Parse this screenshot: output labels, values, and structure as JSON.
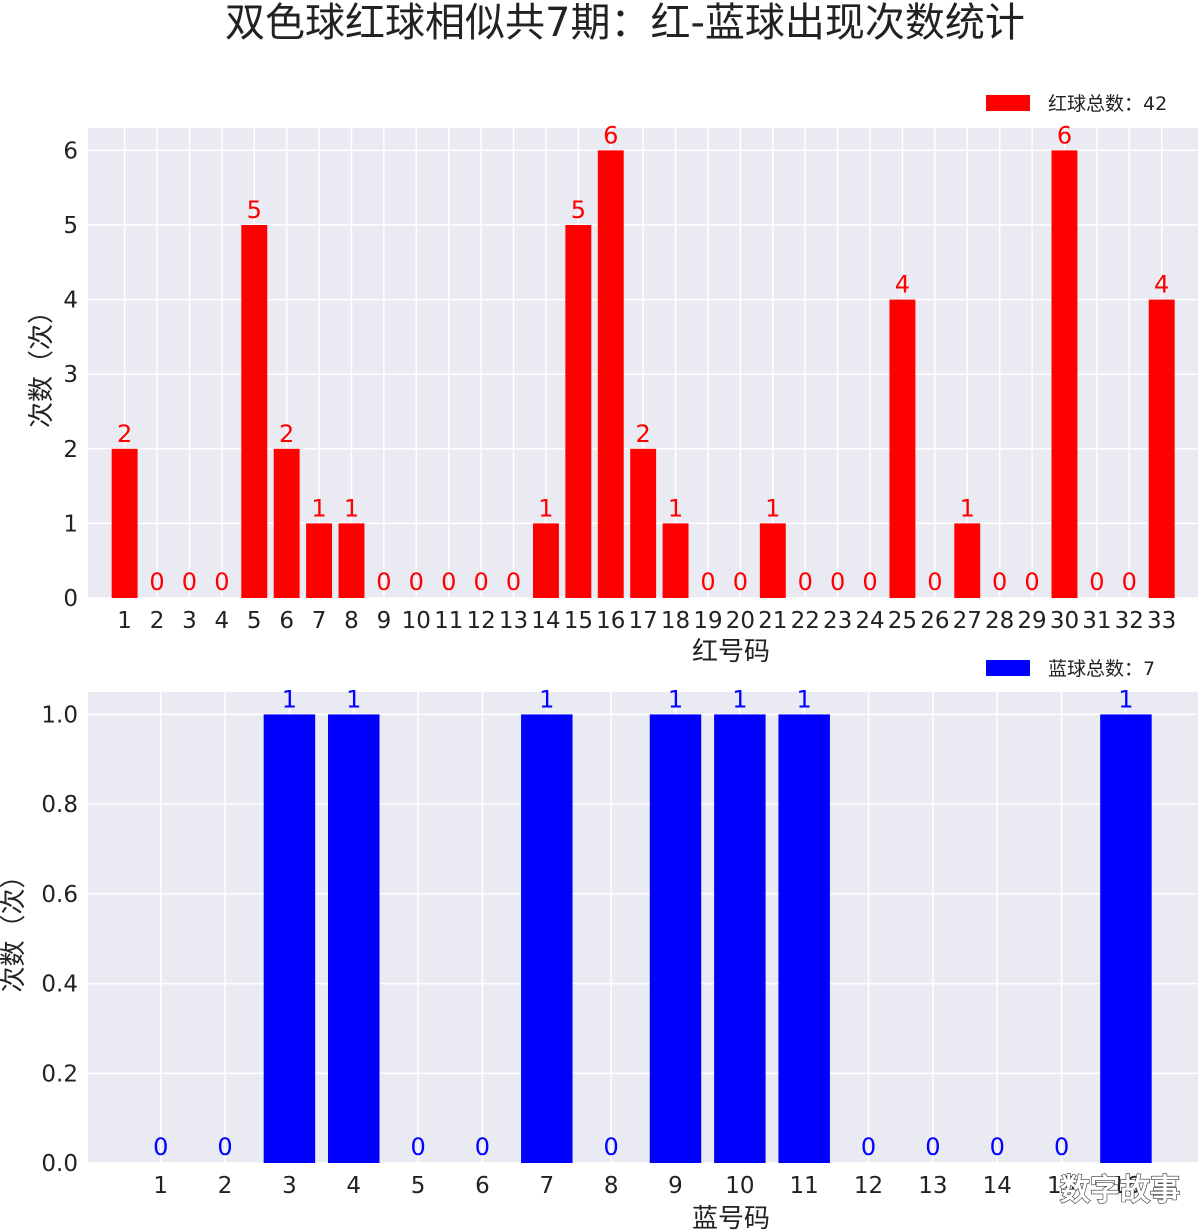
{
  "title": "双色球红球相似共7期：红-蓝球出现次数统计",
  "watermark": "数字故事",
  "chart_data": [
    {
      "type": "bar",
      "color": "#ff0000",
      "categories": [
        "1",
        "2",
        "3",
        "4",
        "5",
        "6",
        "7",
        "8",
        "9",
        "10",
        "11",
        "12",
        "13",
        "14",
        "15",
        "16",
        "17",
        "18",
        "19",
        "20",
        "21",
        "22",
        "23",
        "24",
        "25",
        "26",
        "27",
        "28",
        "29",
        "30",
        "31",
        "32",
        "33"
      ],
      "values": [
        2,
        0,
        0,
        0,
        5,
        2,
        1,
        1,
        0,
        0,
        0,
        0,
        0,
        1,
        5,
        6,
        2,
        1,
        0,
        0,
        1,
        0,
        0,
        0,
        4,
        0,
        1,
        0,
        0,
        6,
        0,
        0,
        4
      ],
      "xlabel": "红号码",
      "ylabel": "次数（次）",
      "legend": "红球总数：42",
      "legend_position": "top-right",
      "yticks": [
        "0",
        "1",
        "2",
        "3",
        "4",
        "5",
        "6"
      ],
      "ylim": [
        0,
        6.3
      ],
      "grid": true
    },
    {
      "type": "bar",
      "color": "#0000ff",
      "categories": [
        "1",
        "2",
        "3",
        "4",
        "5",
        "6",
        "7",
        "8",
        "9",
        "10",
        "11",
        "12",
        "13",
        "14",
        "15",
        "16"
      ],
      "values": [
        0,
        0,
        1,
        1,
        0,
        0,
        1,
        0,
        1,
        1,
        1,
        0,
        0,
        0,
        0,
        1
      ],
      "xlabel": "蓝号码",
      "ylabel": "次数（次）",
      "legend": "蓝球总数：7",
      "legend_position": "top-right",
      "yticks": [
        "0.0",
        "0.2",
        "0.4",
        "0.6",
        "0.8",
        "1.0"
      ],
      "ylim": [
        0,
        1.05
      ],
      "grid": true
    }
  ]
}
